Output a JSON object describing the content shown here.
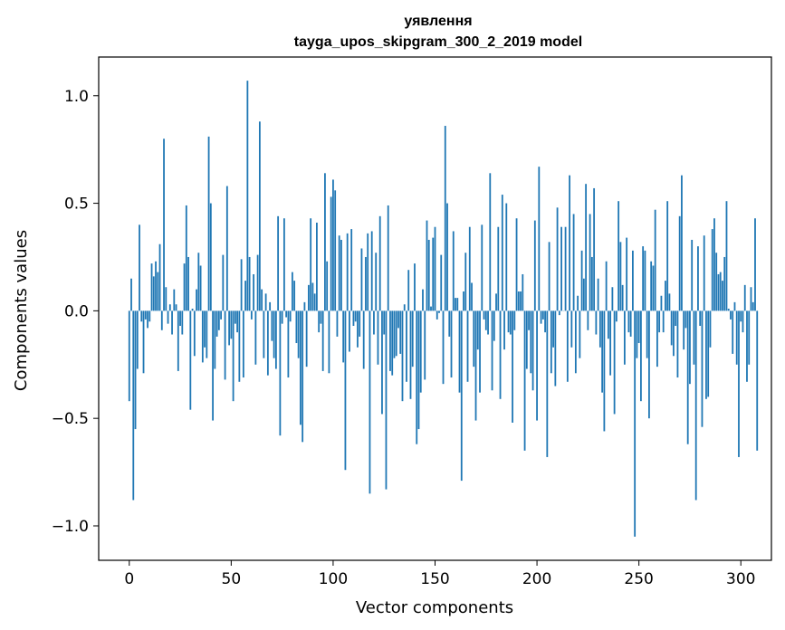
{
  "chart_data": {
    "type": "bar",
    "title": "уявлення",
    "subtitle": "tayga_upos_skipgram_300_2_2019 model",
    "xlabel": "Vector components",
    "ylabel": "Components values",
    "xlim": [
      -15,
      315
    ],
    "ylim": [
      -1.16,
      1.18
    ],
    "xticks": [
      0,
      50,
      100,
      150,
      200,
      250,
      300
    ],
    "xtick_labels": [
      "0",
      "50",
      "100",
      "150",
      "200",
      "250",
      "300"
    ],
    "yticks": [
      1.0,
      0.5,
      0.0,
      -0.5,
      -1.0
    ],
    "ytick_labels": [
      "1.0",
      "0.5",
      "0.0",
      "−0.5",
      "−1.0"
    ],
    "bar_color": "#1f77b4",
    "grid": false,
    "values": [
      -0.42,
      0.15,
      -0.88,
      -0.55,
      -0.27,
      0.4,
      -0.05,
      -0.29,
      -0.04,
      -0.08,
      -0.05,
      0.22,
      0.16,
      0.23,
      0.18,
      0.31,
      -0.09,
      0.8,
      0.11,
      -0.06,
      0.03,
      -0.11,
      0.1,
      0.03,
      -0.28,
      -0.07,
      -0.11,
      0.22,
      0.49,
      0.25,
      -0.46,
      0.01,
      -0.21,
      0.1,
      0.27,
      0.21,
      -0.24,
      -0.17,
      -0.22,
      0.81,
      0.5,
      -0.51,
      -0.27,
      -0.12,
      -0.09,
      -0.04,
      0.26,
      -0.32,
      0.58,
      -0.16,
      -0.13,
      -0.42,
      -0.06,
      -0.1,
      -0.33,
      0.24,
      -0.31,
      0.14,
      1.07,
      0.25,
      -0.04,
      0.17,
      -0.25,
      0.26,
      0.88,
      0.1,
      -0.22,
      0.08,
      -0.3,
      0.04,
      -0.14,
      -0.22,
      -0.27,
      0.44,
      -0.58,
      -0.06,
      0.43,
      -0.03,
      -0.31,
      -0.05,
      0.18,
      0.14,
      -0.15,
      -0.22,
      -0.53,
      -0.61,
      0.04,
      -0.26,
      0.12,
      0.43,
      0.13,
      0.08,
      0.41,
      -0.1,
      -0.06,
      -0.28,
      0.64,
      0.23,
      -0.29,
      0.53,
      0.61,
      0.56,
      -0.12,
      0.35,
      0.33,
      -0.24,
      -0.74,
      0.36,
      -0.19,
      0.38,
      -0.07,
      -0.05,
      -0.17,
      -0.12,
      0.29,
      -0.27,
      0.25,
      0.36,
      -0.85,
      0.37,
      -0.11,
      0.27,
      -0.25,
      0.44,
      -0.48,
      -0.11,
      -0.83,
      0.49,
      -0.28,
      -0.3,
      -0.22,
      -0.21,
      -0.08,
      -0.2,
      -0.42,
      0.03,
      -0.33,
      0.19,
      -0.41,
      -0.26,
      0.22,
      -0.62,
      -0.55,
      -0.38,
      0.1,
      -0.32,
      0.42,
      0.33,
      0.02,
      0.34,
      0.39,
      -0.04,
      -0.01,
      0.26,
      -0.34,
      0.86,
      0.5,
      -0.12,
      -0.31,
      0.37,
      0.06,
      0.06,
      -0.38,
      -0.79,
      0.09,
      0.27,
      -0.33,
      0.39,
      0.13,
      -0.26,
      -0.51,
      -0.18,
      -0.38,
      0.4,
      -0.04,
      -0.09,
      -0.11,
      0.64,
      -0.37,
      -0.14,
      0.08,
      0.39,
      -0.41,
      0.54,
      -0.18,
      0.5,
      -0.1,
      -0.11,
      -0.52,
      -0.09,
      0.43,
      0.09,
      0.09,
      0.17,
      -0.65,
      -0.27,
      -0.09,
      -0.29,
      -0.37,
      0.42,
      -0.51,
      0.67,
      -0.06,
      -0.04,
      -0.1,
      -0.68,
      0.32,
      -0.29,
      -0.17,
      -0.35,
      0.48,
      -0.02,
      0.39,
      0.0,
      0.39,
      -0.33,
      0.63,
      -0.17,
      0.45,
      -0.29,
      0.07,
      -0.22,
      0.28,
      0.15,
      0.59,
      -0.09,
      0.45,
      0.25,
      0.57,
      -0.11,
      0.15,
      -0.17,
      -0.38,
      -0.56,
      0.23,
      -0.13,
      -0.3,
      0.11,
      -0.48,
      -0.05,
      0.51,
      0.32,
      0.12,
      -0.25,
      0.34,
      -0.1,
      -0.12,
      0.28,
      -1.05,
      -0.22,
      -0.15,
      -0.42,
      0.3,
      0.28,
      -0.22,
      -0.5,
      0.23,
      0.21,
      0.47,
      -0.26,
      -0.1,
      0.07,
      -0.1,
      0.14,
      0.51,
      0.08,
      -0.16,
      -0.21,
      -0.07,
      -0.31,
      0.44,
      0.63,
      -0.18,
      -0.08,
      -0.62,
      -0.34,
      0.33,
      -0.25,
      -0.88,
      0.3,
      -0.07,
      -0.54,
      0.35,
      -0.41,
      -0.4,
      -0.17,
      0.38,
      0.43,
      0.27,
      0.17,
      0.18,
      0.14,
      0.25,
      0.51,
      0.01,
      -0.04,
      -0.2,
      0.04,
      -0.25,
      -0.68,
      -0.05,
      -0.1,
      0.12,
      -0.33,
      -0.25,
      0.11,
      0.04,
      0.43,
      -0.65
    ]
  }
}
